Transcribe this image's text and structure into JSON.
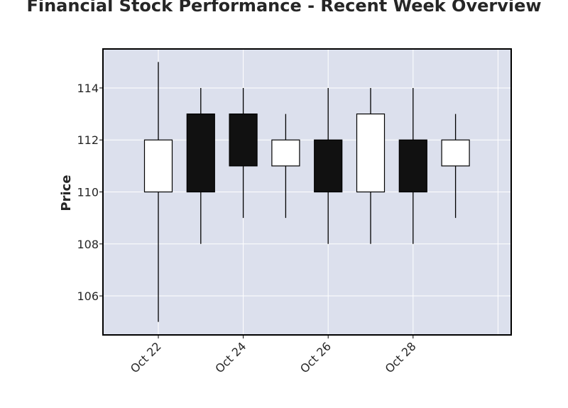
{
  "chart_data": {
    "type": "candlestick",
    "title": "Financial Stock Performance - Recent Week Overview",
    "xlabel": "",
    "ylabel": "Price",
    "x_tick_labels": [
      "Oct 22",
      "Oct 24",
      "Oct 26",
      "Oct 28"
    ],
    "y_ticks": [
      106,
      108,
      110,
      112,
      114
    ],
    "ylim": [
      104.5,
      115.5
    ],
    "grid": true,
    "colors": {
      "background": "#dce0ed",
      "up": "#ffffff",
      "down": "#111111",
      "grid": "#ffffff"
    },
    "candles": [
      {
        "date": "Oct 22",
        "open": 110,
        "high": 115,
        "low": 105,
        "close": 112
      },
      {
        "date": "Oct 23",
        "open": 113,
        "high": 114,
        "low": 108,
        "close": 110
      },
      {
        "date": "Oct 24",
        "open": 113,
        "high": 114,
        "low": 109,
        "close": 111
      },
      {
        "date": "Oct 25",
        "open": 111,
        "high": 113,
        "low": 109,
        "close": 112
      },
      {
        "date": "Oct 26",
        "open": 112,
        "high": 114,
        "low": 108,
        "close": 110
      },
      {
        "date": "Oct 27",
        "open": 110,
        "high": 114,
        "low": 108,
        "close": 113
      },
      {
        "date": "Oct 28",
        "open": 112,
        "high": 114,
        "low": 108,
        "close": 110
      },
      {
        "date": "Oct 29",
        "open": 111,
        "high": 113,
        "low": 109,
        "close": 112
      }
    ]
  }
}
